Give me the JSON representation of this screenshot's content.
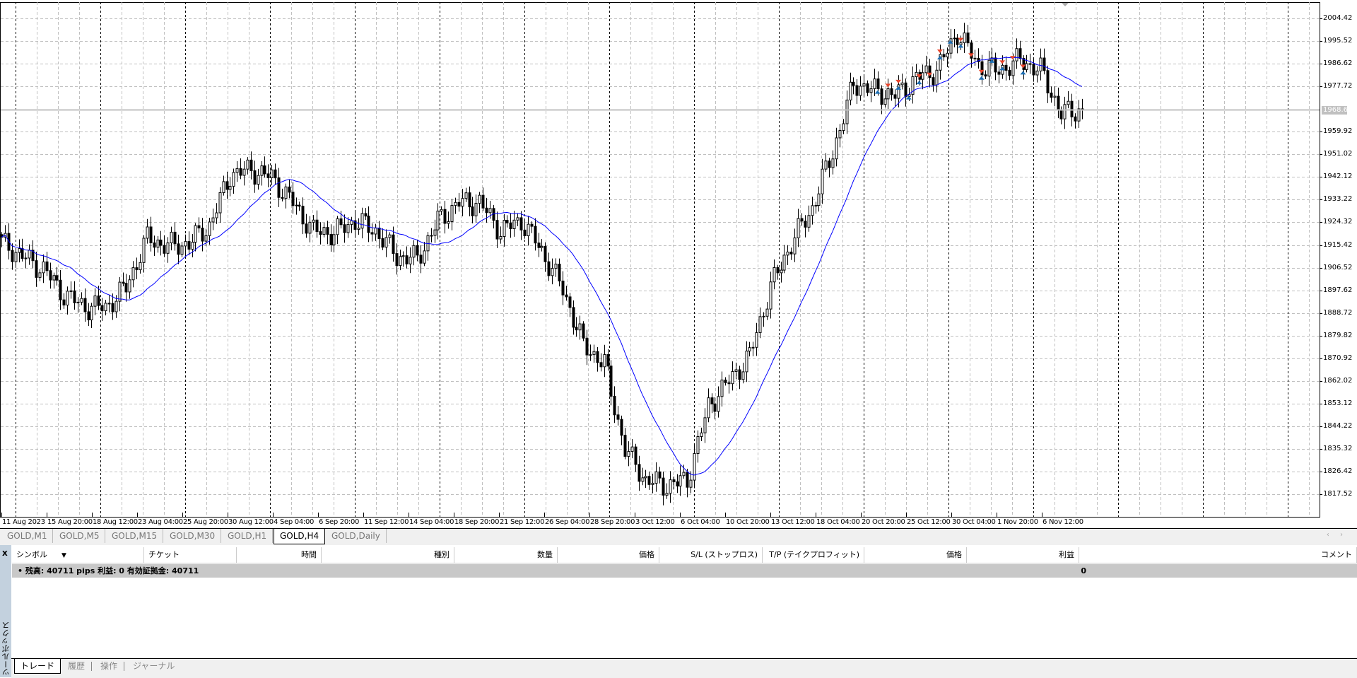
{
  "chart": {
    "symbol": "GOLD",
    "timeframe": "H4",
    "current_price": "1968.65",
    "colors": {
      "bull_fill": "#ffffff",
      "bear_fill": "#000000",
      "candle_outline": "#000000",
      "ma_line": "#0000ff",
      "buy_arrow": "#1e6fb4",
      "sell_arrow": "#e8452c",
      "grid": "#c0c0c0",
      "price_line": "#c0c0c0"
    }
  },
  "chart_data": {
    "type": "candlestick",
    "title": "",
    "y_ticks": [
      "2004.42",
      "1995.52",
      "1986.62",
      "1977.72",
      "1959.92",
      "1951.02",
      "1942.12",
      "1933.22",
      "1924.32",
      "1915.42",
      "1906.52",
      "1897.62",
      "1888.72",
      "1879.82",
      "1870.92",
      "1862.02",
      "1853.12",
      "1844.22",
      "1835.32",
      "1826.42",
      "1817.52"
    ],
    "ylim": [
      1812,
      2012
    ],
    "x_ticks": [
      "11 Aug 2023",
      "15 Aug 20:00",
      "18 Aug 12:00",
      "23 Aug 04:00",
      "25 Aug 20:00",
      "30 Aug 12:00",
      "4 Sep 04:00",
      "6 Sep 20:00",
      "11 Sep 12:00",
      "14 Sep 04:00",
      "18 Sep 20:00",
      "21 Sep 12:00",
      "26 Sep 04:00",
      "28 Sep 20:00",
      "3 Oct 12:00",
      "6 Oct 04:00",
      "10 Oct 20:00",
      "13 Oct 12:00",
      "18 Oct 04:00",
      "20 Oct 20:00",
      "25 Oct 12:00",
      "30 Oct 04:00",
      "1 Nov 20:00",
      "6 Nov 12:00"
    ],
    "approx_close_path": [
      1916.4,
      1911,
      1906,
      1896,
      1891,
      1891,
      1899,
      1918,
      1915,
      1916,
      1923,
      1943,
      1945,
      1942,
      1932,
      1921,
      1920,
      1925,
      1921,
      1911,
      1910,
      1925,
      1932,
      1932,
      1921,
      1925,
      1913,
      1898,
      1876,
      1869,
      1835,
      1823,
      1821,
      1823,
      1852,
      1862,
      1872,
      1899,
      1916,
      1930,
      1952,
      1979,
      1976,
      1974,
      1981,
      1984,
      1999,
      1986,
      1984,
      1988,
      1984,
      1967,
      1968.65
    ],
    "indicator": "moving average",
    "grid": true
  },
  "chart_tabs": [
    "GOLD,M1",
    "GOLD,M5",
    "GOLD,M15",
    "GOLD,M30",
    "GOLD,H1",
    "GOLD,H4",
    "GOLD,Daily"
  ],
  "chart_tabs_active": "GOLD,H4",
  "terminal": {
    "toolbox_label": "ツールボックス",
    "close_label": "x",
    "columns": [
      "シンボル",
      "チケット",
      "時間",
      "種別",
      "数量",
      "価格",
      "S/L (ストップロス)",
      "T/P (テイクプロフィット)",
      "価格",
      "利益",
      "コメント"
    ],
    "sort_indicator": "▼",
    "balance_text": "•  残高: 40711 pips   利益: 0   有効証拠金: 40711",
    "balance_profit": "0",
    "tabs": [
      "トレード",
      "履歴",
      "操作",
      "ジャーナル"
    ],
    "active_tab": "トレード"
  }
}
